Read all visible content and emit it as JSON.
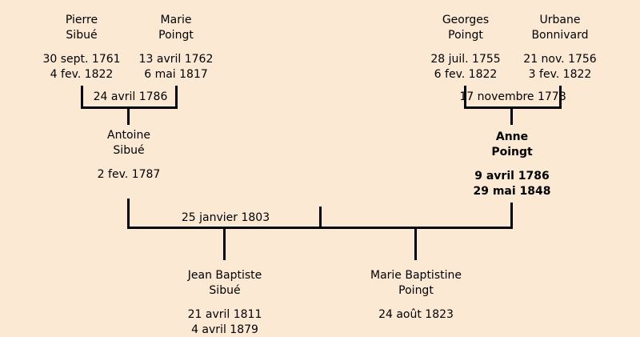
{
  "colors": {
    "background": "#FBE9D3",
    "line": "#000000",
    "text": "#000000"
  },
  "tree": {
    "paternal_family": {
      "father": {
        "given": "Pierre",
        "surname": "Sibué",
        "birth_date": "30 sept. 1761",
        "death_date": "4 fev. 1822"
      },
      "mother": {
        "given": "Marie",
        "surname": "Poingt",
        "birth_date": "13 avril 1762",
        "death_date": "6 mai 1817"
      },
      "marriage_date": "24 avril 1786",
      "child": {
        "given": "Antoine",
        "surname": "Sibué",
        "birth_date": "2 fev. 1787"
      }
    },
    "maternal_family": {
      "father": {
        "given": "Georges",
        "surname": "Poingt",
        "birth_date": "28 juil. 1755",
        "death_date": "6 fev. 1822"
      },
      "mother": {
        "given": "Urbane",
        "surname": "Bonnivard",
        "birth_date": "21 nov. 1756",
        "death_date": "3 fev. 1822"
      },
      "marriage_date": "17 novembre 1778",
      "child": {
        "given": "Anne",
        "surname": "Poingt",
        "birth_date": "9 avril 1786",
        "death_date": "29 mai 1848",
        "highlighted": true
      }
    },
    "central_family": {
      "marriage_date": "25 janvier 1803",
      "children": [
        {
          "given": "Jean Baptiste",
          "surname": "Sibué",
          "birth_date": "21 avril 1811",
          "death_date": "4 avril 1879"
        },
        {
          "given": "Marie Baptistine",
          "surname": "Poingt",
          "birth_date": "24 août 1823"
        }
      ]
    }
  }
}
